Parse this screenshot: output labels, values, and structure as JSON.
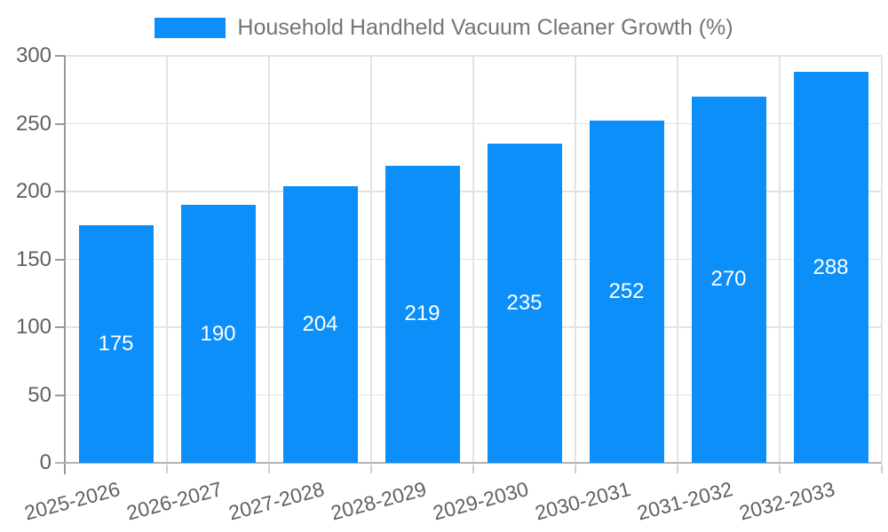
{
  "chart_data": {
    "type": "bar",
    "title": "Household Handheld Vacuum Cleaner Growth (%)",
    "categories": [
      "2025-2026",
      "2026-2027",
      "2027-2028",
      "2028-2029",
      "2029-2030",
      "2030-2031",
      "2031-2032",
      "2032-2033"
    ],
    "values": [
      175,
      190,
      204,
      219,
      235,
      252,
      270,
      288
    ],
    "series": [
      {
        "name": "Household Handheld Vacuum Cleaner Growth (%)",
        "values": [
          175,
          190,
          204,
          219,
          235,
          252,
          270,
          288
        ]
      }
    ],
    "xlabel": "",
    "ylabel": "",
    "ylim": [
      0,
      300
    ],
    "yticks": [
      0,
      50,
      100,
      150,
      200,
      250,
      300
    ],
    "grid": true,
    "grid_vertical": true,
    "legend_position": "top-center",
    "value_label_position": "inside-center",
    "x_tick_rotation_deg": -15,
    "colors": {
      "bar": "#0D8FF9",
      "grid": "#e3e3e3",
      "axis_left": "#999999",
      "axis_bottom": "#b3b3b3",
      "y_tick_mark": "#9a9a9a",
      "x_tick_mark": "#d0d0d0",
      "tick_text": "#616161",
      "legend_text": "#757575",
      "value_label_text": "#ffffff"
    }
  }
}
